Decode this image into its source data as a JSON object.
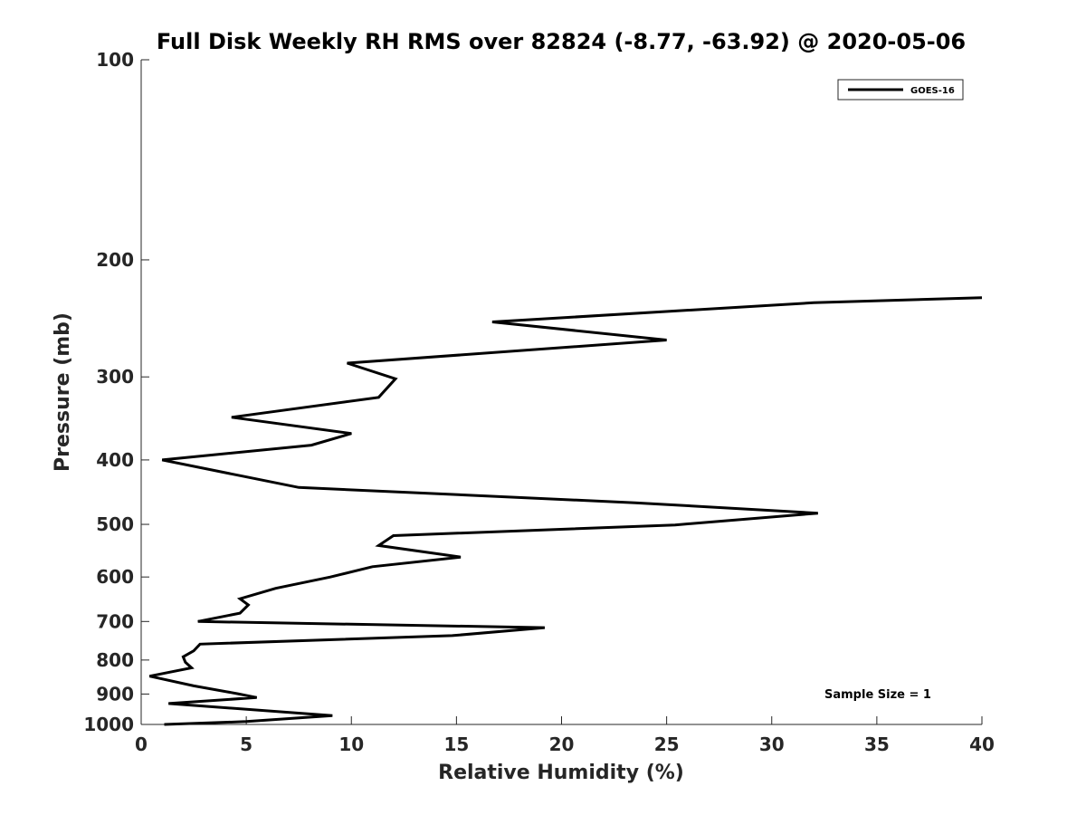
{
  "chart_data": {
    "type": "line",
    "title": "Full Disk Weekly RH RMS over 82824 (-8.77, -63.92) @ 2020-05-06",
    "xlabel": "Relative Humidity (%)",
    "ylabel": "Pressure (mb)",
    "xlim": [
      0,
      40
    ],
    "ylim": [
      100,
      1000
    ],
    "yscale": "log",
    "y_reversed": true,
    "grid": false,
    "xticks": [
      0,
      5,
      10,
      15,
      20,
      25,
      30,
      35,
      40
    ],
    "xtick_labels": [
      "0",
      "5",
      "10",
      "15",
      "20",
      "25",
      "30",
      "35",
      "40"
    ],
    "yticks": [
      100,
      200,
      300,
      400,
      500,
      600,
      700,
      800,
      900,
      1000
    ],
    "ytick_labels": [
      "100",
      "200",
      "300",
      "400",
      "500",
      "600",
      "700",
      "800",
      "900",
      "1000"
    ],
    "legend_placement": "top-right",
    "annotation": "Sample Size = 1",
    "series": [
      {
        "name": "GOES-16",
        "color": "#000000",
        "x": [
          40.0,
          32.0,
          16.7,
          25.0,
          9.8,
          12.1,
          11.3,
          4.3,
          10.0,
          8.1,
          1.0,
          4.8,
          7.5,
          23.5,
          32.2,
          25.4,
          12.0,
          11.3,
          15.2,
          11.0,
          9.0,
          6.4,
          4.7,
          5.1,
          4.7,
          2.7,
          19.2,
          14.8,
          2.8,
          2.5,
          2.0,
          2.1,
          2.4,
          0.4,
          2.5,
          4.6,
          5.5,
          1.3,
          9.1,
          5.0,
          1.1
        ],
        "y": [
          228,
          232,
          248,
          264,
          286,
          302,
          322,
          345,
          365,
          380,
          400,
          423,
          440,
          464,
          481,
          501,
          520,
          538,
          560,
          579,
          600,
          624,
          647,
          661,
          680,
          700,
          715,
          735,
          757,
          775,
          791,
          806,
          822,
          846,
          875,
          899,
          911,
          930,
          970,
          990,
          1000
        ]
      }
    ]
  }
}
